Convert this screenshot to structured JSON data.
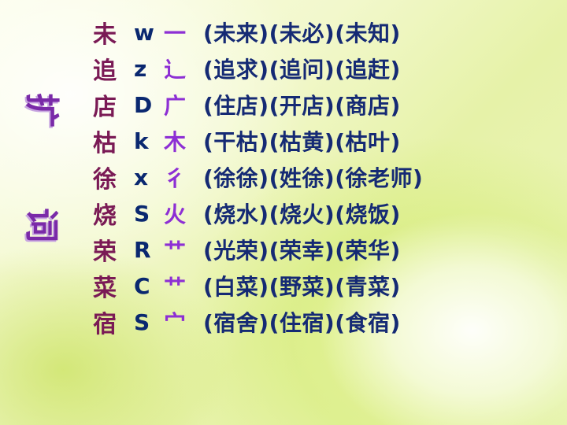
{
  "side_title": [
    "扩",
    "词"
  ],
  "rows": [
    {
      "char": "未",
      "pinyin": "w",
      "radical": "一",
      "words": "(未来)(未必)(未知)"
    },
    {
      "char": "追",
      "pinyin": "z",
      "radical": "辶",
      "words": "(追求)(追问)(追赶)"
    },
    {
      "char": "店",
      "pinyin": "D",
      "radical": "广",
      "words": "(住店)(开店)(商店)"
    },
    {
      "char": "枯",
      "pinyin": "k",
      "radical": "木",
      "words": "(干枯)(枯黄)(枯叶)"
    },
    {
      "char": "徐",
      "pinyin": "x",
      "radical": "彳",
      "words": "(徐徐)(姓徐)(徐老师)"
    },
    {
      "char": "烧",
      "pinyin": "S",
      "radical": "火",
      "words": "(烧水)(烧火)(烧饭)"
    },
    {
      "char": "荣",
      "pinyin": "R",
      "radical": "艹",
      "words": "(光荣)(荣幸)(荣华)"
    },
    {
      "char": "菜",
      "pinyin": "C",
      "radical": "艹",
      "words": "(白菜)(野菜)(青菜)"
    },
    {
      "char": "宿",
      "pinyin": "S",
      "radical": "宀",
      "words": "(宿舍)(住宿)(食宿)"
    }
  ]
}
